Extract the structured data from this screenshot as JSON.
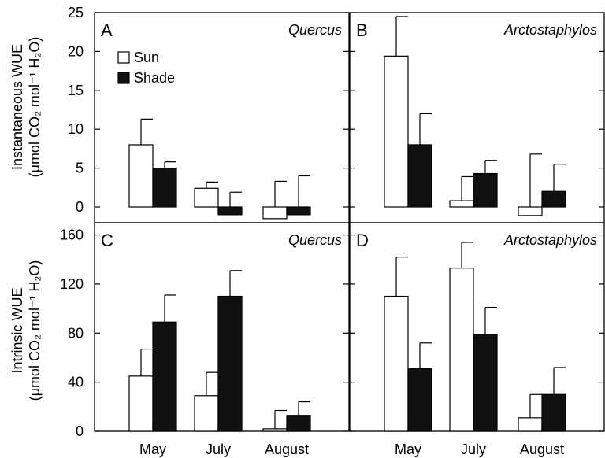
{
  "legend": {
    "items": [
      "Sun",
      "Shade"
    ],
    "colors": [
      "#ffffff",
      "#111111"
    ],
    "placement": "top-left of panel A"
  },
  "row_labels": {
    "top": {
      "line1": "Instantaneous WUE",
      "line2": "(μmol CO₂ mol⁻¹ H₂O)"
    },
    "bottom": {
      "line1": "Intrinsic WUE",
      "line2": "(μmol CO₂ mol⁻¹ H₂O)"
    }
  },
  "chart_data": [
    {
      "type": "bar",
      "panel": "A",
      "species": "Quercus",
      "categories": [
        "May",
        "July",
        "August"
      ],
      "ylim": [
        0,
        25
      ],
      "yticks": [
        0,
        5,
        10,
        15,
        20,
        25
      ],
      "series": [
        {
          "name": "Sun",
          "values": [
            8.0,
            2.4,
            -1.5
          ],
          "errors": [
            3.3,
            0.8,
            3.3
          ]
        },
        {
          "name": "Shade",
          "values": [
            5.0,
            -1.0,
            -1.0
          ],
          "errors": [
            0.8,
            1.9,
            4.0
          ]
        }
      ]
    },
    {
      "type": "bar",
      "panel": "B",
      "species": "Arctostaphylos",
      "categories": [
        "May",
        "July",
        "August"
      ],
      "ylim": [
        0,
        25
      ],
      "yticks": [
        0,
        5,
        10,
        15,
        20,
        25
      ],
      "series": [
        {
          "name": "Sun",
          "values": [
            19.4,
            0.8,
            -1.1
          ],
          "errors": [
            5.1,
            3.1,
            6.8
          ]
        },
        {
          "name": "Shade",
          "values": [
            8.0,
            4.3,
            2.0
          ],
          "errors": [
            4.0,
            1.7,
            3.5
          ]
        }
      ]
    },
    {
      "type": "bar",
      "panel": "C",
      "species": "Quercus",
      "categories": [
        "May",
        "July",
        "August"
      ],
      "ylim": [
        0,
        170
      ],
      "yticks": [
        0,
        40,
        80,
        120,
        160
      ],
      "series": [
        {
          "name": "Sun",
          "values": [
            45,
            29,
            2
          ],
          "errors": [
            22,
            19,
            15
          ]
        },
        {
          "name": "Shade",
          "values": [
            89,
            110,
            13
          ],
          "errors": [
            22,
            21,
            11
          ]
        }
      ]
    },
    {
      "type": "bar",
      "panel": "D",
      "species": "Arctostaphylos",
      "categories": [
        "May",
        "July",
        "August"
      ],
      "ylim": [
        0,
        170
      ],
      "yticks": [
        0,
        40,
        80,
        120,
        160
      ],
      "series": [
        {
          "name": "Sun",
          "values": [
            110,
            133,
            11
          ],
          "errors": [
            32,
            21,
            19
          ]
        },
        {
          "name": "Shade",
          "values": [
            51,
            79,
            30
          ],
          "errors": [
            21,
            22,
            22
          ]
        }
      ]
    }
  ]
}
